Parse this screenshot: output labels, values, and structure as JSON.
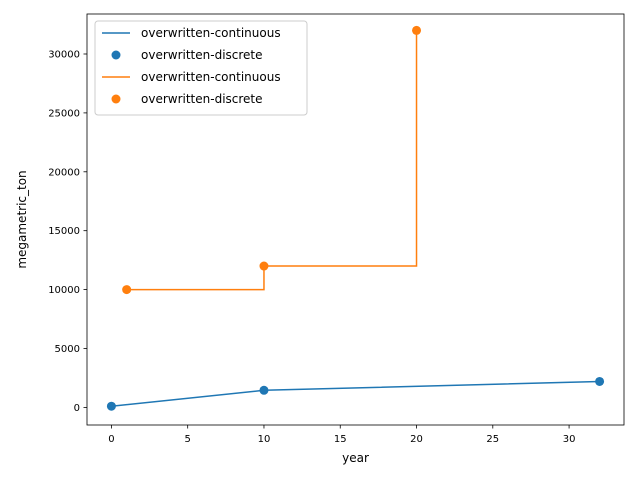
{
  "chart_data": {
    "type": "line",
    "xlabel": "year",
    "ylabel": "megametric_ton",
    "xlim": [
      -1.6,
      33.6
    ],
    "ylim": [
      -1495,
      33395
    ],
    "xticks": [
      0,
      5,
      10,
      15,
      20,
      25,
      30
    ],
    "yticks": [
      0,
      5000,
      10000,
      15000,
      20000,
      25000,
      30000
    ],
    "grid": false,
    "legend_position": "top-left",
    "series": [
      {
        "name": "overwritten-continuous",
        "kind": "line",
        "step": false,
        "color": "#1f77b4",
        "x": [
          0,
          10,
          32
        ],
        "y": [
          100,
          1450,
          2200
        ]
      },
      {
        "name": "overwritten-discrete",
        "kind": "scatter",
        "color": "#1f77b4",
        "x": [
          0,
          10,
          32
        ],
        "y": [
          100,
          1450,
          2200
        ]
      },
      {
        "name": "overwritten-continuous",
        "kind": "line",
        "step": true,
        "color": "#ff7f0e",
        "x": [
          1,
          10,
          20
        ],
        "y": [
          10000,
          12000,
          32000
        ]
      },
      {
        "name": "overwritten-discrete",
        "kind": "scatter",
        "color": "#ff7f0e",
        "x": [
          1,
          10,
          20
        ],
        "y": [
          10000,
          12000,
          32000
        ]
      }
    ]
  }
}
